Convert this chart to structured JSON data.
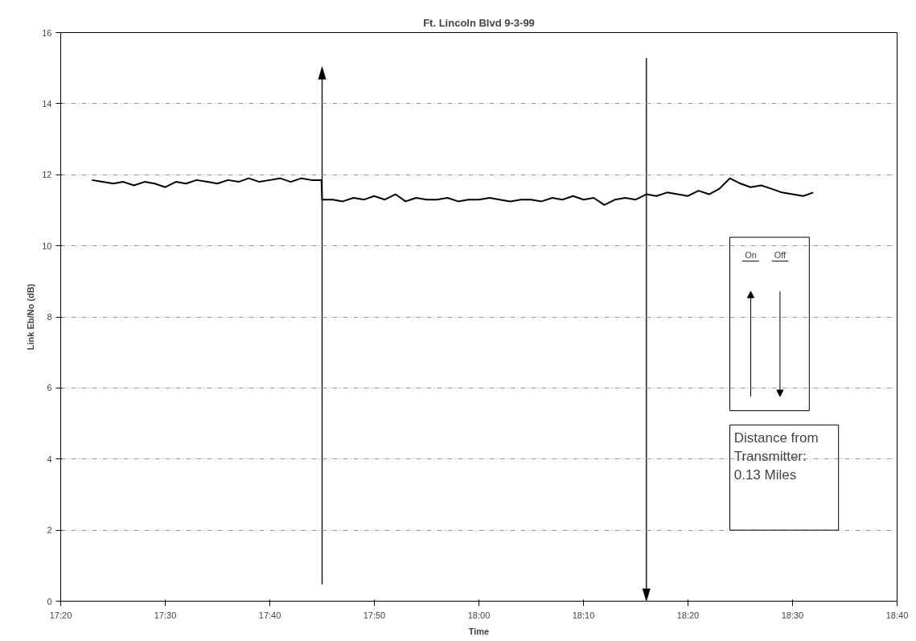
{
  "chart_data": {
    "type": "line",
    "title": "Ft. Lincoln Blvd 9-3-99",
    "xlabel": "Time",
    "ylabel": "Link Eb/No (dB)",
    "xlim": [
      17.3333,
      18.6667
    ],
    "xticks": [
      {
        "value": 17.3333,
        "label": "17:20"
      },
      {
        "value": 17.5,
        "label": "17:30"
      },
      {
        "value": 17.6667,
        "label": "17:40"
      },
      {
        "value": 17.8333,
        "label": "17:50"
      },
      {
        "value": 18,
        "label": "18:00"
      },
      {
        "value": 18.1667,
        "label": "18:10"
      },
      {
        "value": 18.3333,
        "label": "18:20"
      },
      {
        "value": 18.5,
        "label": "18:30"
      },
      {
        "value": 18.6667,
        "label": "18:40"
      }
    ],
    "ylim": [
      0,
      16
    ],
    "yticks": [
      0,
      2,
      4,
      6,
      8,
      10,
      12,
      14,
      16
    ],
    "grid": "y",
    "marker": "none",
    "line_style": "solid",
    "series": [
      {
        "color": "#000000",
        "x": [
          17.383,
          17.4,
          17.417,
          17.433,
          17.45,
          17.467,
          17.483,
          17.5,
          17.517,
          17.533,
          17.55,
          17.567,
          17.583,
          17.6,
          17.617,
          17.633,
          17.65,
          17.667,
          17.683,
          17.7,
          17.717,
          17.733,
          17.749,
          17.75,
          17.767,
          17.783,
          17.8,
          17.817,
          17.833,
          17.85,
          17.867,
          17.883,
          17.9,
          17.917,
          17.933,
          17.95,
          17.967,
          17.983,
          18,
          18.017,
          18.033,
          18.05,
          18.067,
          18.083,
          18.1,
          18.117,
          18.133,
          18.15,
          18.167,
          18.183,
          18.2,
          18.217,
          18.233,
          18.25,
          18.267,
          18.283,
          18.3,
          18.317,
          18.333,
          18.35,
          18.367,
          18.383,
          18.4,
          18.417,
          18.433,
          18.45,
          18.467,
          18.483,
          18.5,
          18.517,
          18.533
        ],
        "values": [
          11.85,
          11.8,
          11.75,
          11.8,
          11.7,
          11.8,
          11.75,
          11.65,
          11.8,
          11.75,
          11.85,
          11.8,
          11.75,
          11.85,
          11.8,
          11.9,
          11.8,
          11.85,
          11.9,
          11.8,
          11.9,
          11.85,
          11.85,
          11.3,
          11.3,
          11.25,
          11.35,
          11.3,
          11.4,
          11.3,
          11.45,
          11.25,
          11.35,
          11.3,
          11.3,
          11.35,
          11.25,
          11.3,
          11.3,
          11.35,
          11.3,
          11.25,
          11.3,
          11.3,
          11.25,
          11.35,
          11.3,
          11.4,
          11.3,
          11.35,
          11.15,
          11.3,
          11.35,
          11.3,
          11.45,
          11.4,
          11.5,
          11.45,
          11.4,
          11.55,
          11.45,
          11.6,
          11.9,
          11.75,
          11.65,
          11.7,
          11.6,
          11.5,
          11.45,
          11.4,
          11.5
        ]
      }
    ],
    "ref_lines": [
      {
        "axis": "x",
        "value": 17.75,
        "color": "#000000"
      },
      {
        "axis": "x",
        "value": 18.267,
        "color": "#000000"
      }
    ],
    "annotations": [
      "On",
      "Off",
      "Distance from\nTransmitter:\n0.13 Miles"
    ]
  }
}
